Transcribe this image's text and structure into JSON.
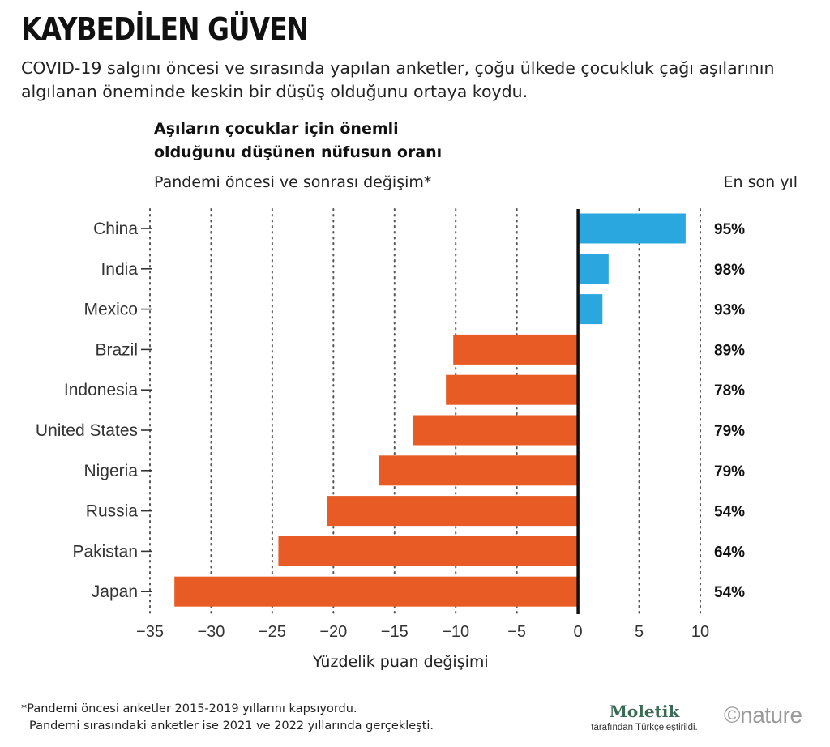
{
  "headline": "KAYBEDİLEN GÜVEN",
  "subhead": "COVID-19 salgını öncesi ve sırasında yapılan anketler, çoğu ülkede çocukluk çağı aşılarının algılanan öneminde keskin bir düşüş olduğunu ortaya koydu.",
  "chart_title_line1": "Aşıların çocuklar için önemli",
  "chart_title_line2": "olduğunu düşünen nüfusun oranı",
  "left_header": "Pandemi öncesi ve sonrası değişim*",
  "right_header": "En son yıl",
  "footnote_line1": "*Pandemi öncesi anketler 2015-2019 yıllarını kapsıyordu.",
  "footnote_line2": "Pandemi sırasındaki anketler ise 2021 ve 2022 yıllarında gerçekleşti.",
  "brand_logo": "Moletik",
  "brand_tagline": "tarafından Türkçeleştirildi.",
  "credit": "©nature",
  "colors": {
    "positive": "#2ba7df",
    "negative": "#e85b25",
    "axis": "#111111",
    "grid": "#555555"
  },
  "chart_data": {
    "type": "bar",
    "orientation": "horizontal",
    "title": "Aşıların çocuklar için önemli olduğunu düşünen nüfusun oranı",
    "xlabel": "Yüzdelik puan değişimi",
    "ylabel": "",
    "xlim": [
      -35,
      10
    ],
    "xticks": [
      -35,
      -30,
      -25,
      -20,
      -15,
      -10,
      -5,
      0,
      5,
      10
    ],
    "xtick_labels": [
      "−35",
      "−30",
      "−25",
      "−20",
      "−15",
      "−10",
      "−5",
      "0",
      "5",
      "10"
    ],
    "grid": "vertical dotted",
    "categories": [
      "China",
      "India",
      "Mexico",
      "Brazil",
      "Indonesia",
      "United States",
      "Nigeria",
      "Russia",
      "Pakistan",
      "Japan"
    ],
    "values": [
      8.8,
      2.5,
      2.0,
      -10.2,
      -10.8,
      -13.5,
      -16.3,
      -20.5,
      -24.5,
      -33.0
    ],
    "latest_year_labels": [
      "95%",
      "98%",
      "93%",
      "89%",
      "78%",
      "79%",
      "79%",
      "54%",
      "64%",
      "54%"
    ]
  }
}
